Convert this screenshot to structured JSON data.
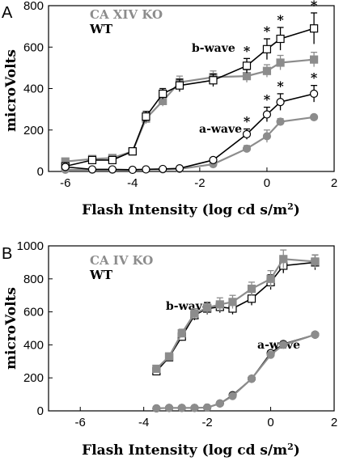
{
  "chart_data": [
    {
      "type": "line",
      "panel_label": "A",
      "xlabel": "Flash Intensity (log cd s/m",
      "xlabel_sup": "2",
      "xlabel_end": ")",
      "ylabel": "microVolts",
      "xlim": [
        -6.5,
        2
      ],
      "ylim": [
        0,
        800
      ],
      "xticks": [
        -6,
        -4,
        -2,
        0,
        2
      ],
      "yticks": [
        0,
        200,
        400,
        600,
        800
      ],
      "legend": [
        {
          "label": "CA XIV KO",
          "color": "#8c8c8c"
        },
        {
          "label": "WT",
          "color": "#000000"
        }
      ],
      "annotations": [
        "b-wave",
        "a-wave"
      ],
      "significance_marker": "*",
      "series": [
        {
          "wave": "b",
          "group": "ko",
          "color": "#8c8c8c",
          "marker": "square-filled",
          "x": [
            -6,
            -5.2,
            -4.6,
            -4,
            -3.6,
            -3.1,
            -2.6,
            -1.6,
            -0.6,
            0,
            0.4,
            1.4
          ],
          "y": [
            48,
            60,
            65,
            97,
            255,
            340,
            430,
            455,
            460,
            485,
            525,
            540
          ],
          "err": [
            12,
            10,
            10,
            12,
            25,
            25,
            30,
            30,
            30,
            30,
            35,
            35
          ]
        },
        {
          "wave": "b",
          "group": "wt",
          "color": "#000000",
          "marker": "square-open",
          "x": [
            -6,
            -5.2,
            -4.6,
            -4,
            -3.6,
            -3.1,
            -2.6,
            -1.6,
            -0.6,
            0,
            0.4,
            1.4
          ],
          "y": [
            25,
            55,
            55,
            97,
            265,
            375,
            415,
            440,
            510,
            590,
            640,
            690
          ],
          "err": [
            10,
            10,
            10,
            12,
            25,
            25,
            30,
            30,
            35,
            50,
            55,
            75
          ],
          "significant": [
            false,
            false,
            false,
            false,
            false,
            false,
            false,
            false,
            true,
            true,
            true,
            true
          ]
        },
        {
          "wave": "a",
          "group": "ko",
          "color": "#8c8c8c",
          "marker": "circle-filled",
          "x": [
            -6,
            -5.2,
            -4.6,
            -4,
            -3.6,
            -3.1,
            -2.6,
            -1.6,
            -0.6,
            0,
            0.4,
            1.4
          ],
          "y": [
            8,
            8,
            8,
            8,
            10,
            10,
            12,
            35,
            110,
            170,
            240,
            262
          ],
          "err": [
            4,
            4,
            4,
            4,
            4,
            4,
            5,
            8,
            15,
            30,
            15,
            10
          ]
        },
        {
          "wave": "a",
          "group": "wt",
          "color": "#000000",
          "marker": "circle-open",
          "x": [
            -6,
            -5.2,
            -4.6,
            -4,
            -3.6,
            -3.1,
            -2.6,
            -1.6,
            -0.6,
            0,
            0.4,
            1.4
          ],
          "y": [
            22,
            10,
            10,
            8,
            10,
            12,
            15,
            55,
            180,
            275,
            335,
            375
          ],
          "err": [
            4,
            4,
            4,
            4,
            4,
            4,
            5,
            10,
            25,
            35,
            40,
            40
          ],
          "significant": [
            false,
            false,
            false,
            false,
            false,
            false,
            false,
            false,
            true,
            true,
            true,
            true
          ]
        }
      ]
    },
    {
      "type": "line",
      "panel_label": "B",
      "xlabel": "Flash Intensity (log cd s/m",
      "xlabel_sup": "2",
      "xlabel_end": ")",
      "ylabel": "microVolts",
      "xlim": [
        -7,
        2
      ],
      "ylim": [
        0,
        1000
      ],
      "xticks": [
        -6,
        -4,
        -2,
        0,
        2
      ],
      "yticks": [
        0,
        200,
        400,
        600,
        800,
        1000
      ],
      "legend": [
        {
          "label": "CA IV KO",
          "color": "#8c8c8c"
        },
        {
          "label": "WT",
          "color": "#000000"
        }
      ],
      "annotations": [
        "b-wave",
        "a-wave"
      ],
      "series": [
        {
          "wave": "b",
          "group": "wt",
          "color": "#000000",
          "marker": "square-open",
          "x": [
            -3.6,
            -3.2,
            -2.8,
            -2.4,
            -2.0,
            -1.6,
            -1.2,
            -0.6,
            0,
            0.4,
            1.4
          ],
          "y": [
            240,
            325,
            450,
            580,
            620,
            630,
            620,
            680,
            780,
            880,
            900
          ],
          "err": [
            20,
            20,
            25,
            30,
            35,
            35,
            35,
            40,
            45,
            45,
            45
          ]
        },
        {
          "wave": "b",
          "group": "ko",
          "color": "#8c8c8c",
          "marker": "square-filled",
          "x": [
            -3.6,
            -3.2,
            -2.8,
            -2.4,
            -2.0,
            -1.6,
            -1.2,
            -0.6,
            0,
            0.4,
            1.4
          ],
          "y": [
            255,
            330,
            470,
            590,
            625,
            645,
            660,
            740,
            800,
            920,
            905
          ],
          "err": [
            20,
            20,
            25,
            30,
            35,
            40,
            40,
            40,
            50,
            55,
            40
          ]
        },
        {
          "wave": "a",
          "group": "wt",
          "color": "#000000",
          "marker": "circle-open",
          "x": [
            -3.6,
            -3.2,
            -2.8,
            -2.4,
            -2.0,
            -1.6,
            -1.2,
            -0.6,
            0,
            0.4,
            1.4
          ],
          "y": [
            15,
            18,
            18,
            18,
            20,
            45,
            95,
            195,
            350,
            405,
            462
          ],
          "err": [
            4,
            4,
            4,
            4,
            5,
            8,
            10,
            15,
            15,
            15,
            15
          ]
        },
        {
          "wave": "a",
          "group": "ko",
          "color": "#8c8c8c",
          "marker": "circle-filled",
          "x": [
            -3.6,
            -3.2,
            -2.8,
            -2.4,
            -2.0,
            -1.6,
            -1.2,
            -0.6,
            0,
            0.4,
            1.4
          ],
          "y": [
            15,
            18,
            18,
            18,
            20,
            45,
            90,
            195,
            340,
            400,
            462
          ],
          "err": [
            4,
            4,
            4,
            4,
            5,
            8,
            10,
            15,
            15,
            15,
            15
          ]
        }
      ]
    }
  ]
}
